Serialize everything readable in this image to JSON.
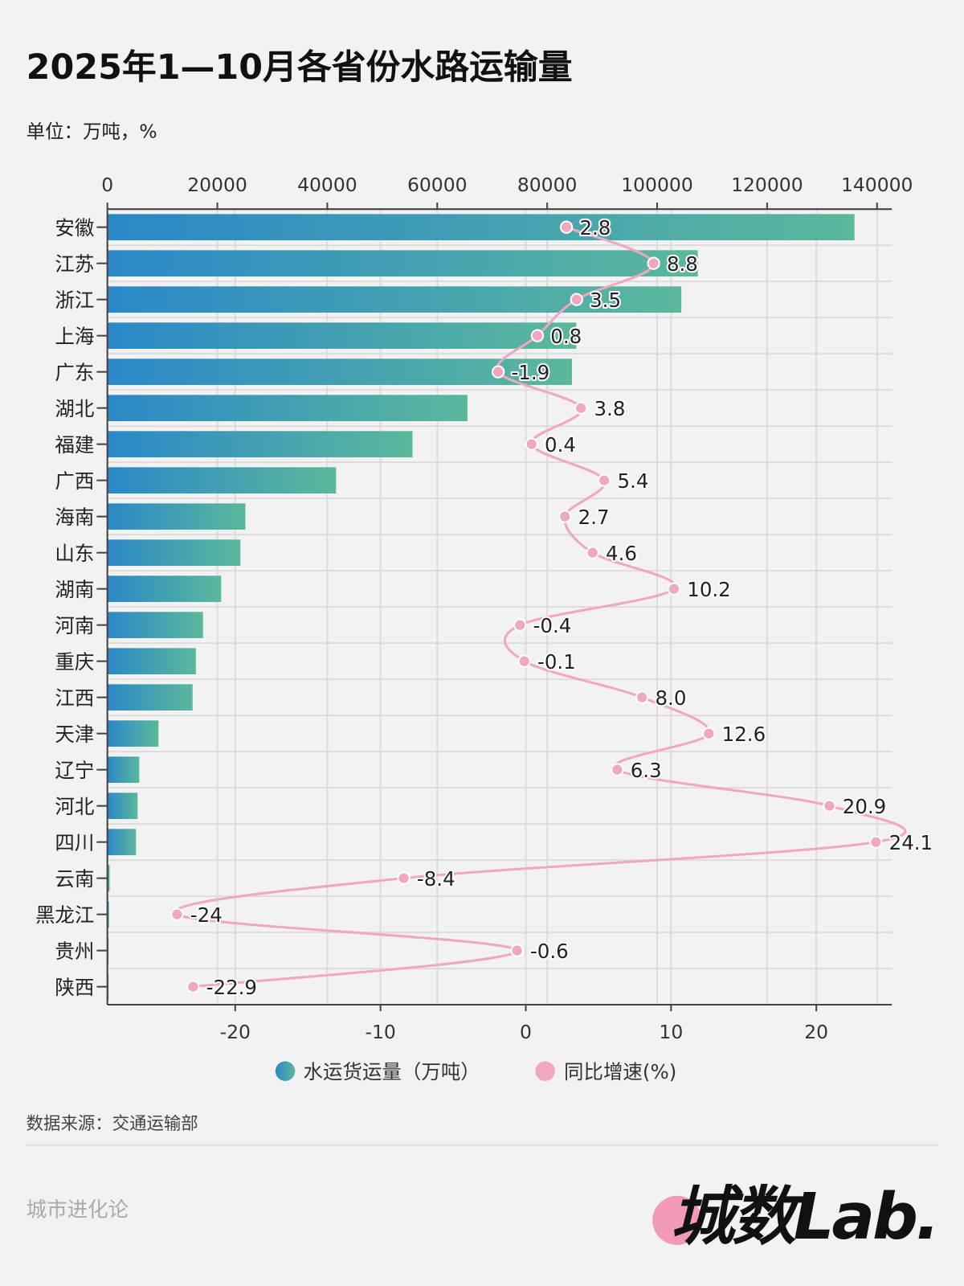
{
  "header": {
    "title": "2025年1—10月各省份水路运输量",
    "unit": "单位：万吨，%"
  },
  "chart_data": {
    "type": "bar+line",
    "categories": [
      "安徽",
      "江苏",
      "浙江",
      "上海",
      "广东",
      "湖北",
      "福建",
      "广西",
      "海南",
      "山东",
      "湖南",
      "河南",
      "重庆",
      "江西",
      "天津",
      "辽宁",
      "河北",
      "四川",
      "云南",
      "黑龙江",
      "贵州",
      "陕西"
    ],
    "series": [
      {
        "name": "水运货运量（万吨）",
        "type": "bar",
        "axis": "top",
        "color_start": "#2a88c8",
        "color_end": "#5bb89c",
        "values": [
          135900,
          107400,
          104400,
          85300,
          84500,
          65500,
          55500,
          41600,
          25100,
          24200,
          20700,
          17400,
          16100,
          15500,
          9300,
          5800,
          5500,
          5200,
          400,
          300,
          100,
          50
        ]
      },
      {
        "name": "同比增速(%)",
        "type": "line",
        "axis": "bottom",
        "color": "#f0a8bf",
        "values": [
          2.8,
          8.8,
          3.5,
          0.8,
          -1.9,
          3.8,
          0.4,
          5.4,
          2.7,
          4.6,
          10.2,
          -0.4,
          -0.1,
          8.0,
          12.6,
          6.3,
          20.9,
          24.1,
          -8.4,
          -24,
          -0.6,
          -22.9
        ],
        "labels": [
          "2.8",
          "8.8",
          "3.5",
          "0.8",
          "-1.9",
          "3.8",
          "0.4",
          "5.4",
          "2.7",
          "4.6",
          "10.2",
          "-0.4",
          "-0.1",
          "8.0",
          "12.6",
          "6.3",
          "20.9",
          "24.1",
          "-8.4",
          "-24",
          "-0.6",
          "-22.9"
        ]
      }
    ],
    "top_axis": {
      "ticks": [
        "0",
        "20000",
        "40000",
        "60000",
        "80000",
        "100000",
        "120000",
        "140000"
      ],
      "range": [
        0,
        142700
      ]
    },
    "bottom_axis": {
      "ticks": [
        "-20",
        "-10",
        "0",
        "10",
        "20"
      ],
      "range": [
        -28.8,
        25.2
      ]
    },
    "grid": true,
    "legend": "bottom"
  },
  "footer": {
    "source": "数据来源：交通运输部",
    "account": "城市进化论",
    "logo": "城数Lab."
  }
}
